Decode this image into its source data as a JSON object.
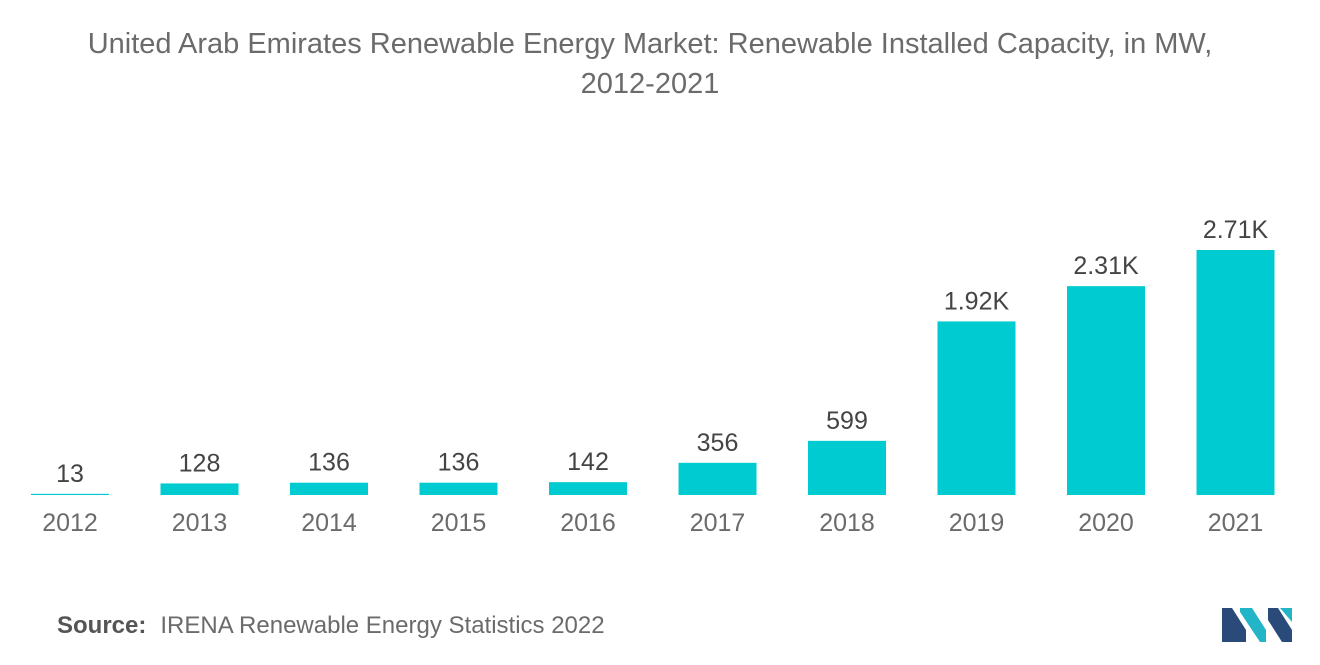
{
  "title_line1": "United Arab Emirates Renewable Energy Market: Renewable Installed Capacity, in MW,",
  "title_line2": "2012-2021",
  "source_label": "Source:",
  "source_text": "IRENA Renewable Energy Statistics 2022",
  "colors": {
    "bar": "#00cbd1",
    "text": "#6b6b6b",
    "logo_dark": "#2a4a7a",
    "logo_light": "#22b5c8"
  },
  "logo_icon": "mordor-intelligence-logo-icon",
  "chart_data": {
    "type": "bar",
    "title": "United Arab Emirates Renewable Energy Market: Renewable Installed Capacity, in MW, 2012-2021",
    "categories": [
      "2012",
      "2013",
      "2014",
      "2015",
      "2016",
      "2017",
      "2018",
      "2019",
      "2020",
      "2021"
    ],
    "values": [
      13,
      128,
      136,
      136,
      142,
      356,
      599,
      1920,
      2310,
      2710
    ],
    "data_labels": [
      "13",
      "128",
      "136",
      "136",
      "142",
      "356",
      "599",
      "1.92K",
      "2.31K",
      "2.71K"
    ],
    "xlabel": "",
    "ylabel": "",
    "ylim": [
      0,
      2710
    ],
    "grid": false,
    "legend": "none"
  }
}
